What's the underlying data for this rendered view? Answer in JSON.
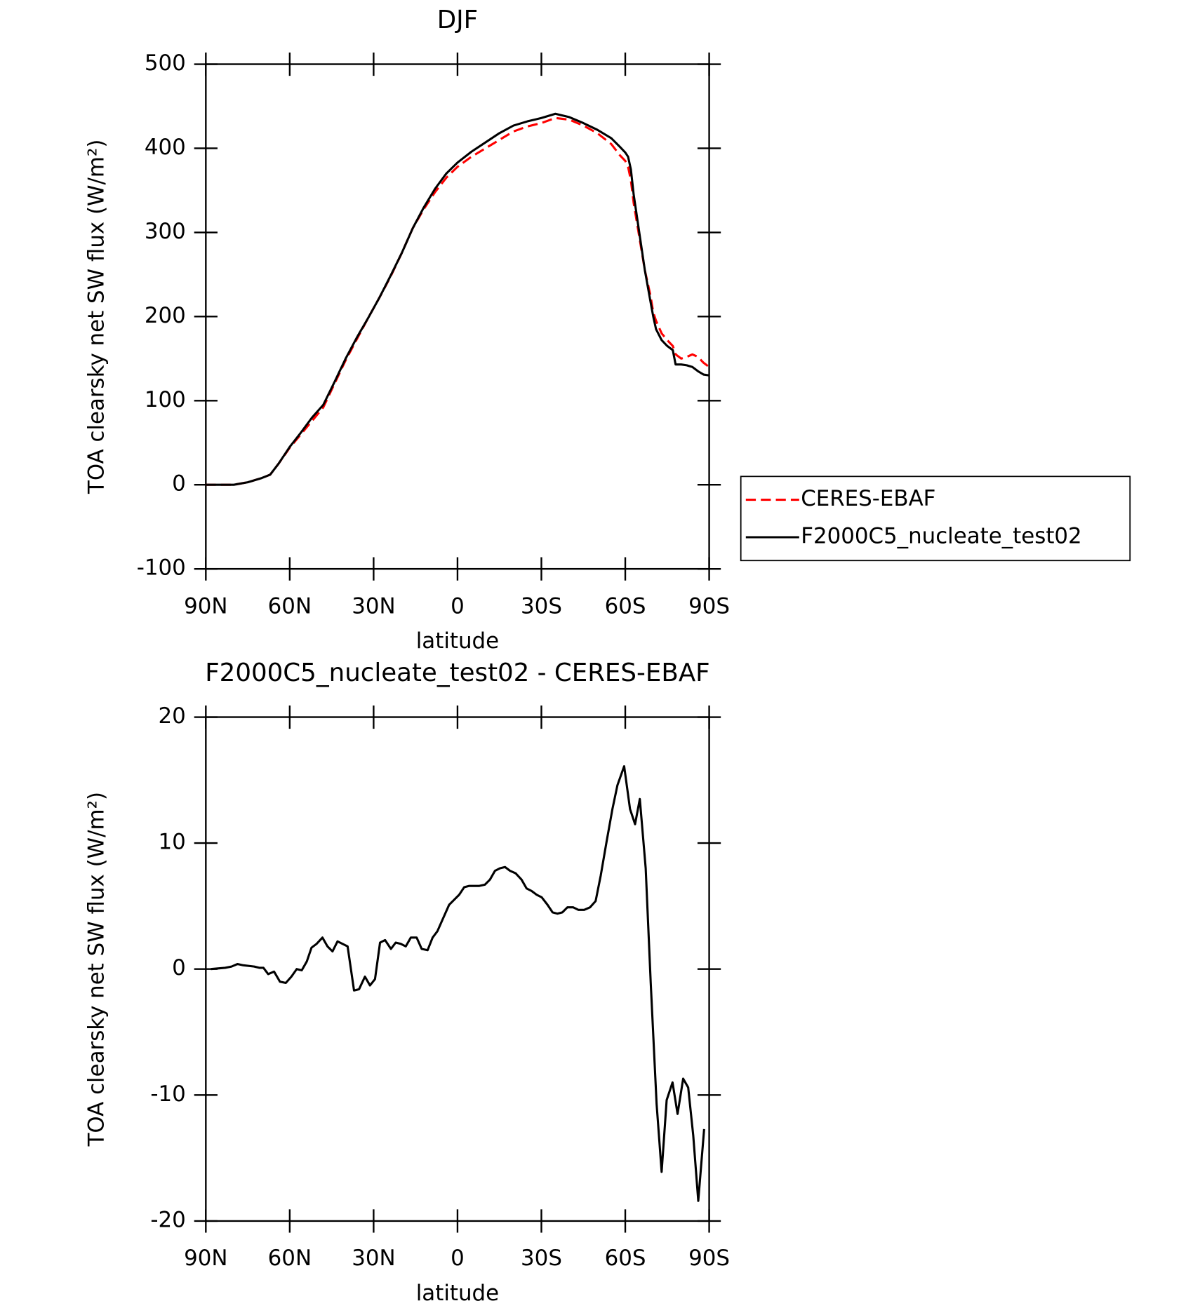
{
  "chart_data": [
    {
      "type": "line",
      "title": "DJF",
      "xlabel": "latitude",
      "ylabel": "TOA clearsky net SW flux (W/m²)",
      "x": [
        90,
        85,
        80,
        75,
        70,
        67,
        64,
        60,
        56,
        52,
        48,
        44,
        40,
        36,
        32,
        28,
        24,
        20,
        16,
        12,
        8,
        4,
        0,
        -5,
        -10,
        -15,
        -20,
        -25,
        -30,
        -35,
        -40,
        -45,
        -50,
        -55,
        -58,
        -60,
        -61,
        -62,
        -63,
        -65,
        -67,
        -69,
        -70,
        -71,
        -73,
        -75,
        -77,
        -78,
        -80,
        -82,
        -84,
        -86,
        -88,
        -90
      ],
      "series": [
        {
          "name": "CERES-EBAF",
          "color": "#ff0000",
          "style": "dashed",
          "values": [
            0,
            0,
            0,
            3,
            8,
            12,
            25,
            44,
            60,
            76,
            92,
            120,
            148,
            173,
            198,
            222,
            247,
            275,
            305,
            328,
            348,
            365,
            378,
            390,
            400,
            410,
            420,
            426,
            430,
            436,
            434,
            427,
            418,
            405,
            392,
            385,
            378,
            362,
            335,
            295,
            255,
            225,
            205,
            195,
            180,
            172,
            165,
            155,
            150,
            152,
            155,
            152,
            145,
            140
          ]
        },
        {
          "name": "F2000C5_nucleate_test02",
          "color": "#000000",
          "style": "solid",
          "values": [
            0,
            0,
            0,
            3,
            8,
            12,
            25,
            45,
            62,
            80,
            95,
            122,
            150,
            175,
            198,
            222,
            248,
            275,
            305,
            330,
            352,
            370,
            383,
            396,
            407,
            418,
            427,
            432,
            436,
            441,
            437,
            430,
            422,
            412,
            402,
            395,
            390,
            375,
            345,
            300,
            255,
            218,
            200,
            185,
            172,
            165,
            160,
            143,
            143,
            142,
            140,
            135,
            131,
            130
          ]
        }
      ],
      "xlim": [
        90,
        -90
      ],
      "xticks": [
        {
          "value": 90,
          "label": "90N"
        },
        {
          "value": 60,
          "label": "60N"
        },
        {
          "value": 30,
          "label": "30N"
        },
        0,
        {
          "value": -30,
          "label": "30S"
        },
        {
          "value": -60,
          "label": "60S"
        },
        {
          "value": -90,
          "label": "90S"
        }
      ],
      "ylim": [
        -100,
        500
      ],
      "yticks": [
        -100,
        0,
        100,
        200,
        300,
        400,
        500
      ],
      "legend": "right"
    },
    {
      "type": "line",
      "title": "F2000C5_nucleate_test02 - CERES-EBAF",
      "xlabel": "latitude",
      "ylabel": "TOA clearsky net SW flux (W/m²)",
      "x": [
        88.2,
        83.1,
        80.8,
        78.7,
        76.6,
        72.7,
        70.9,
        69.4,
        67.7,
        65.6,
        63.5,
        61.4,
        59.4,
        57.5,
        55.7,
        53.9,
        52.2,
        50.4,
        48.3,
        46.5,
        44.7,
        42.9,
        39.3,
        37.0,
        35.2,
        33.1,
        31.3,
        29.5,
        27.7,
        25.9,
        23.8,
        22.1,
        20.3,
        18.5,
        16.7,
        14.6,
        12.8,
        10.7,
        8.9,
        7.2,
        5.4,
        3.0,
        1.2,
        -0.6,
        -2.4,
        -4.2,
        -6.0,
        -7.8,
        -9.8,
        -11.6,
        -13.4,
        -15.2,
        -17.0,
        -18.8,
        -20.8,
        -22.9,
        -24.7,
        -26.5,
        -28.3,
        -30.1,
        -32.2,
        -34.0,
        -35.7,
        -37.5,
        -39.3,
        -41.4,
        -43.2,
        -45.3,
        -47.4,
        -49.4,
        -51.2,
        -53.3,
        -55.4,
        -57.2,
        -59.6,
        -61.7,
        -63.5,
        -65.2,
        -67.3,
        -69.1,
        -71.2,
        -73.0,
        -74.8,
        -76.9,
        -78.7,
        -80.7,
        -82.5,
        -84.3,
        -86.1,
        -88.2
      ],
      "color": "#000000",
      "values": [
        0,
        0.1,
        0.2,
        0.4,
        0.3,
        0.2,
        0.1,
        0.1,
        -0.4,
        -0.2,
        -1.0,
        -1.1,
        -0.6,
        0,
        -0.1,
        0.6,
        1.7,
        2.0,
        2.5,
        1.8,
        1.4,
        2.2,
        1.8,
        -1.7,
        -1.6,
        -0.6,
        -1.3,
        -0.8,
        2.1,
        2.3,
        1.6,
        2.1,
        2.0,
        1.8,
        2.5,
        2.5,
        1.6,
        1.5,
        2.5,
        3.0,
        3.9,
        5.1,
        5.5,
        5.9,
        6.5,
        6.6,
        6.6,
        6.6,
        6.7,
        7.1,
        7.8,
        8.0,
        8.1,
        7.8,
        7.6,
        7.1,
        6.4,
        6.2,
        5.9,
        5.7,
        5.1,
        4.5,
        4.4,
        4.5,
        4.9,
        4.9,
        4.7,
        4.7,
        4.9,
        5.4,
        7.4,
        10.1,
        12.7,
        14.6,
        16.1,
        12.7,
        11.5,
        13.5,
        8.0,
        -1.1,
        -10.7,
        -16.1,
        -10.4,
        -9.0,
        -11.5,
        -8.7,
        -9.4,
        -13.2,
        -18.4,
        -12.7
      ],
      "xlim": [
        90,
        -90
      ],
      "xticks": [
        {
          "value": 90,
          "label": "90N"
        },
        {
          "value": 60,
          "label": "60N"
        },
        {
          "value": 30,
          "label": "30N"
        },
        0,
        {
          "value": -30,
          "label": "30S"
        },
        {
          "value": -60,
          "label": "60S"
        },
        {
          "value": -90,
          "label": "90S"
        }
      ],
      "ylim": [
        -20,
        20
      ],
      "yticks": [
        -20,
        -10,
        0,
        10,
        20
      ]
    }
  ]
}
